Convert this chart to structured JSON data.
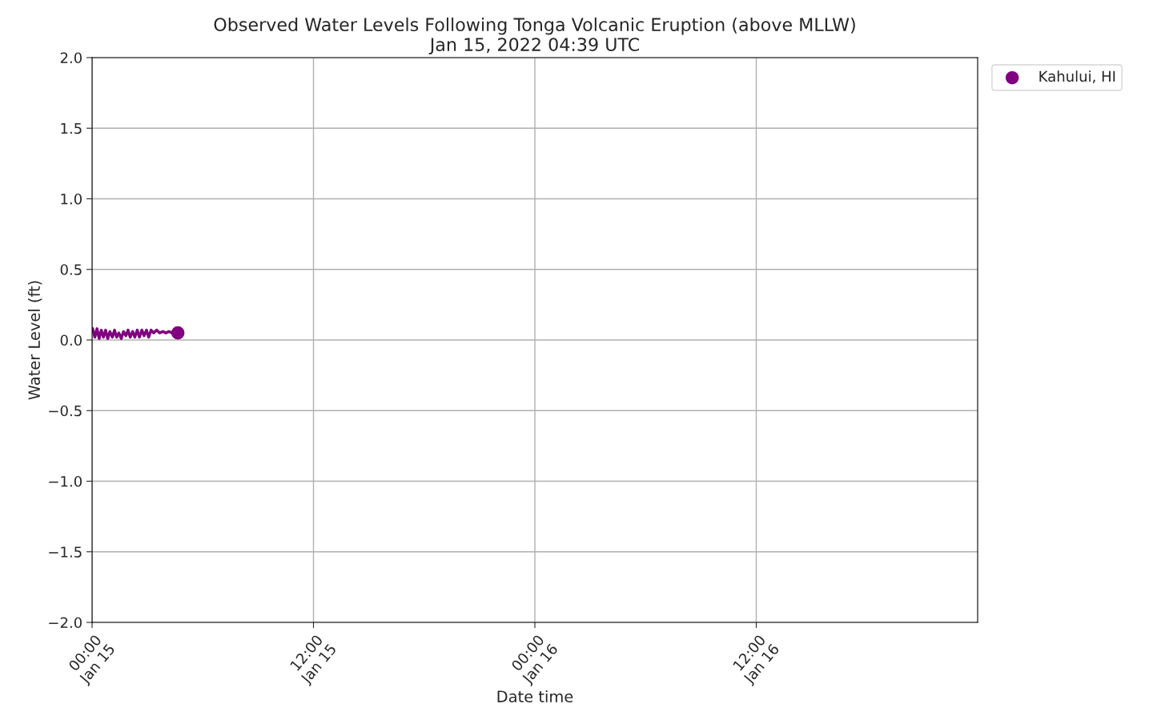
{
  "chart_data": {
    "type": "line",
    "title": "Observed Water Levels Following Tonga Volcanic Eruption (above MLLW)\nJan 15, 2022 04:39 UTC",
    "xlabel": "Date time",
    "ylabel": "Water Level (ft)",
    "x": [
      "2022-01-15T00:02",
      "2022-01-15T00:09",
      "2022-01-15T00:16",
      "2022-01-15T00:23",
      "2022-01-15T00:30",
      "2022-01-15T00:37",
      "2022-01-15T00:44",
      "2022-01-15T00:51",
      "2022-01-15T00:58",
      "2022-01-15T01:06",
      "2022-01-15T01:13",
      "2022-01-15T01:20",
      "2022-01-15T01:27",
      "2022-01-15T01:35",
      "2022-01-15T01:42",
      "2022-01-15T01:50",
      "2022-01-15T01:57",
      "2022-01-15T02:04",
      "2022-01-15T02:12",
      "2022-01-15T02:19",
      "2022-01-15T02:27",
      "2022-01-15T02:34",
      "2022-01-15T02:42",
      "2022-01-15T02:49",
      "2022-01-15T02:57",
      "2022-01-15T03:04",
      "2022-01-15T03:12",
      "2022-01-15T03:20",
      "2022-01-15T03:30",
      "2022-01-15T03:40",
      "2022-01-15T03:50",
      "2022-01-15T04:00",
      "2022-01-15T04:10",
      "2022-01-15T04:20",
      "2022-01-15T04:30",
      "2022-01-15T04:39"
    ],
    "series": [
      {
        "color": "#800080",
        "marker": "none",
        "values": [
          0.08,
          0.02,
          0.08,
          0.01,
          0.07,
          0.02,
          0.07,
          0.01,
          0.06,
          0.02,
          0.07,
          0.02,
          0.05,
          0.01,
          0.06,
          0.03,
          0.07,
          0.02,
          0.06,
          0.02,
          0.07,
          0.02,
          0.07,
          0.03,
          0.07,
          0.02,
          0.07,
          0.05,
          0.07,
          0.05,
          0.06,
          0.05,
          0.06,
          0.05,
          0.06,
          0.05
        ]
      },
      {
        "type": "scatter",
        "name": "Kahului, HI",
        "color": "#800080",
        "marker": "circle",
        "x": [
          "2022-01-15T04:39"
        ],
        "values": [
          0.05
        ]
      }
    ],
    "xlim": [
      "2022-01-15T00:00",
      "2022-01-17T00:00"
    ],
    "xticks": [
      {
        "value": "2022-01-15T00:00",
        "label": "00:00\nJan 15"
      },
      {
        "value": "2022-01-15T12:00",
        "label": "12:00\nJan 15"
      },
      {
        "value": "2022-01-16T00:00",
        "label": "00:00\nJan 16"
      },
      {
        "value": "2022-01-16T12:00",
        "label": "12:00\nJan 16"
      }
    ],
    "ylim": [
      -2.0,
      2.0
    ],
    "yticks": [
      {
        "value": -2.0,
        "label": "−2.0"
      },
      {
        "value": -1.5,
        "label": "−1.5"
      },
      {
        "value": -1.0,
        "label": "−1.0"
      },
      {
        "value": -0.5,
        "label": "−0.5"
      },
      {
        "value": 0.0,
        "label": "0.0"
      },
      {
        "value": 0.5,
        "label": "0.5"
      },
      {
        "value": 1.0,
        "label": "1.0"
      },
      {
        "value": 1.5,
        "label": "1.5"
      },
      {
        "value": 2.0,
        "label": "2.0"
      }
    ],
    "grid": true,
    "legend": "top right"
  }
}
